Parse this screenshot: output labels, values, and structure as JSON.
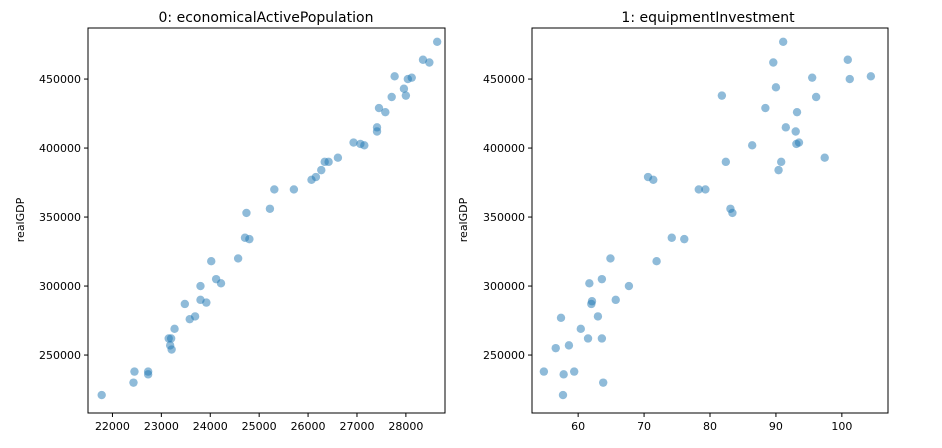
{
  "chart_data": [
    {
      "type": "scatter",
      "title": "0: economicalActivePopulation",
      "xlabel": "",
      "ylabel": "realGDP",
      "xlim": [
        21500,
        28800
      ],
      "ylim": [
        208000,
        487000
      ],
      "xticks": [
        22000,
        23000,
        24000,
        25000,
        26000,
        27000,
        28000
      ],
      "yticks": [
        250000,
        300000,
        350000,
        400000,
        450000
      ],
      "color": "#1f77b4",
      "grid": false,
      "points": [
        [
          21780,
          221000
        ],
        [
          22430,
          230000
        ],
        [
          22450,
          238000
        ],
        [
          22730,
          238000
        ],
        [
          22730,
          236000
        ],
        [
          23150,
          262000
        ],
        [
          23180,
          257000
        ],
        [
          23200,
          262000
        ],
        [
          23210,
          254000
        ],
        [
          23270,
          269000
        ],
        [
          23480,
          287000
        ],
        [
          23580,
          276000
        ],
        [
          23690,
          278000
        ],
        [
          23800,
          300000
        ],
        [
          23800,
          290000
        ],
        [
          23920,
          288000
        ],
        [
          24020,
          318000
        ],
        [
          24120,
          305000
        ],
        [
          24220,
          302000
        ],
        [
          24570,
          320000
        ],
        [
          24710,
          335000
        ],
        [
          24740,
          353000
        ],
        [
          24800,
          334000
        ],
        [
          25220,
          356000
        ],
        [
          25310,
          370000
        ],
        [
          25710,
          370000
        ],
        [
          26070,
          377000
        ],
        [
          26160,
          379000
        ],
        [
          26270,
          384000
        ],
        [
          26340,
          390000
        ],
        [
          26420,
          390000
        ],
        [
          26610,
          393000
        ],
        [
          26930,
          404000
        ],
        [
          27070,
          403000
        ],
        [
          27150,
          402000
        ],
        [
          27410,
          412000
        ],
        [
          27410,
          415000
        ],
        [
          27450,
          429000
        ],
        [
          27580,
          426000
        ],
        [
          27710,
          437000
        ],
        [
          27770,
          452000
        ],
        [
          27960,
          443000
        ],
        [
          28000,
          438000
        ],
        [
          28040,
          450000
        ],
        [
          28120,
          451000
        ],
        [
          28350,
          464000
        ],
        [
          28480,
          462000
        ],
        [
          28640,
          477000
        ]
      ]
    },
    {
      "type": "scatter",
      "title": "1: equipmentInvestment",
      "xlabel": "",
      "ylabel": "realGDP",
      "xlim": [
        53,
        107
      ],
      "ylim": [
        208000,
        487000
      ],
      "xticks": [
        60,
        70,
        80,
        90,
        100
      ],
      "yticks": [
        250000,
        300000,
        350000,
        400000,
        450000
      ],
      "color": "#1f77b4",
      "grid": false,
      "points": [
        [
          54.8,
          238000
        ],
        [
          56.6,
          255000
        ],
        [
          57.4,
          277000
        ],
        [
          57.7,
          221000
        ],
        [
          57.8,
          236000
        ],
        [
          58.6,
          257000
        ],
        [
          59.4,
          238000
        ],
        [
          60.4,
          269000
        ],
        [
          61.5,
          262000
        ],
        [
          61.7,
          302000
        ],
        [
          62.0,
          287000
        ],
        [
          62.1,
          289000
        ],
        [
          63.0,
          278000
        ],
        [
          63.6,
          305000
        ],
        [
          63.6,
          262000
        ],
        [
          63.8,
          230000
        ],
        [
          64.9,
          320000
        ],
        [
          65.7,
          290000
        ],
        [
          67.7,
          300000
        ],
        [
          70.6,
          379000
        ],
        [
          71.4,
          377000
        ],
        [
          71.9,
          318000
        ],
        [
          74.2,
          335000
        ],
        [
          76.1,
          334000
        ],
        [
          78.3,
          370000
        ],
        [
          79.3,
          370000
        ],
        [
          81.8,
          438000
        ],
        [
          82.4,
          390000
        ],
        [
          83.1,
          356000
        ],
        [
          83.4,
          353000
        ],
        [
          86.4,
          402000
        ],
        [
          88.4,
          429000
        ],
        [
          89.6,
          462000
        ],
        [
          90.0,
          444000
        ],
        [
          90.4,
          384000
        ],
        [
          90.8,
          390000
        ],
        [
          91.1,
          477000
        ],
        [
          91.5,
          415000
        ],
        [
          93.0,
          412000
        ],
        [
          93.1,
          403000
        ],
        [
          93.2,
          426000
        ],
        [
          93.5,
          404000
        ],
        [
          95.5,
          451000
        ],
        [
          96.1,
          437000
        ],
        [
          97.4,
          393000
        ],
        [
          100.9,
          464000
        ],
        [
          101.2,
          450000
        ],
        [
          104.4,
          452000
        ]
      ]
    }
  ]
}
